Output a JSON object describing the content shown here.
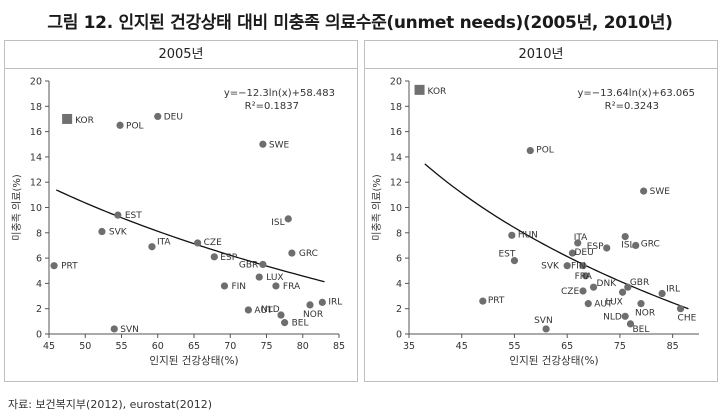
{
  "title": "그림 12. 인지된 건강상태 대비 미충족 의료수준(unmet needs)(2005년, 2010년)",
  "source": "자료: 보건복지부(2012), eurostat(2012)",
  "colors": {
    "point": "#6e6e6e",
    "kor": "#707070",
    "trend": "#111111",
    "axis": "#555555",
    "text": "#333333"
  },
  "chart_data": [
    {
      "type": "scatter",
      "title": "2005년",
      "xlabel": "인지된 건강상태(%)",
      "ylabel": "미충족 의료(%)",
      "xlim": [
        45,
        85
      ],
      "ylim": [
        0,
        20
      ],
      "xticks": [
        45,
        50,
        55,
        60,
        65,
        70,
        75,
        80,
        85
      ],
      "yticks": [
        0,
        2,
        4,
        6,
        8,
        10,
        12,
        14,
        16,
        18,
        20
      ],
      "legend": "KOR",
      "equation": "y=−12.3ln(x)+58.483",
      "r2": "R²=0.1837",
      "trend": {
        "a": -12.3,
        "b": 58.483,
        "x_from": 46,
        "x_to": 83
      },
      "points": [
        {
          "label": "KOR",
          "x": 47.5,
          "y": 17.0,
          "marker": "square",
          "dx": 8,
          "dy": 4,
          "anchor": "start"
        },
        {
          "label": "POL",
          "x": 54.8,
          "y": 16.5,
          "dx": 6,
          "dy": 3,
          "anchor": "start"
        },
        {
          "label": "DEU",
          "x": 60.0,
          "y": 17.2,
          "dx": 6,
          "dy": 3,
          "anchor": "start"
        },
        {
          "label": "SWE",
          "x": 74.5,
          "y": 15.0,
          "dx": 6,
          "dy": 3,
          "anchor": "start"
        },
        {
          "label": "EST",
          "x": 54.5,
          "y": 9.4,
          "dx": 7,
          "dy": 0,
          "anchor": "start"
        },
        {
          "label": "SVK",
          "x": 52.3,
          "y": 8.1,
          "dx": 7,
          "dy": 3,
          "anchor": "start"
        },
        {
          "label": "ITA",
          "x": 59.2,
          "y": 6.9,
          "dx": 5,
          "dy": -2,
          "anchor": "start"
        },
        {
          "label": "CZE",
          "x": 65.5,
          "y": 7.2,
          "dx": 6,
          "dy": 2,
          "anchor": "start"
        },
        {
          "label": "ESP",
          "x": 67.8,
          "y": 6.1,
          "dx": 6,
          "dy": 0,
          "anchor": "start"
        },
        {
          "label": "ISL",
          "x": 78.0,
          "y": 9.1,
          "dx": -17,
          "dy": 6,
          "anchor": "start"
        },
        {
          "label": "GRC",
          "x": 78.5,
          "y": 6.4,
          "dx": 7,
          "dy": 3,
          "anchor": "start"
        },
        {
          "label": "GBR",
          "x": 74.5,
          "y": 5.5,
          "dx": -24,
          "dy": 3,
          "anchor": "start"
        },
        {
          "label": "LUX",
          "x": 74.0,
          "y": 4.5,
          "dx": 7,
          "dy": 3,
          "anchor": "start"
        },
        {
          "label": "FRA",
          "x": 76.3,
          "y": 3.8,
          "dx": 7,
          "dy": 3,
          "anchor": "start"
        },
        {
          "label": "FIN",
          "x": 69.2,
          "y": 3.8,
          "dx": 7,
          "dy": 3,
          "anchor": "start"
        },
        {
          "label": "PRT",
          "x": 45.7,
          "y": 5.4,
          "dx": 7,
          "dy": 3,
          "anchor": "start"
        },
        {
          "label": "NLD",
          "x": 77.0,
          "y": 1.5,
          "dx": -20,
          "dy": -3,
          "anchor": "start"
        },
        {
          "label": "AUT",
          "x": 72.5,
          "y": 1.9,
          "dx": 6,
          "dy": 3,
          "anchor": "start"
        },
        {
          "label": "NOR",
          "x": 81.0,
          "y": 2.3,
          "dx": -7,
          "dy": 12,
          "anchor": "start"
        },
        {
          "label": "IRL",
          "x": 82.7,
          "y": 2.5,
          "dx": 6,
          "dy": 2,
          "anchor": "start"
        },
        {
          "label": "BEL",
          "x": 77.5,
          "y": 0.9,
          "dx": 7,
          "dy": 3,
          "anchor": "start"
        },
        {
          "label": "SVN",
          "x": 54.0,
          "y": 0.4,
          "dx": 6,
          "dy": 3,
          "anchor": "start"
        }
      ]
    },
    {
      "type": "scatter",
      "title": "2010년",
      "xlabel": "인지된 건강상태(%)",
      "ylabel": "미충족 의료(%)",
      "xlim": [
        35,
        90
      ],
      "ylim": [
        0,
        20
      ],
      "xticks": [
        35,
        45,
        55,
        65,
        75,
        85
      ],
      "yticks": [
        0,
        2,
        4,
        6,
        8,
        10,
        12,
        14,
        16,
        18,
        20
      ],
      "legend": "KOR",
      "equation": "y=−13.64ln(x)+63.065",
      "r2": "R²=0.3243",
      "trend": {
        "a": -13.64,
        "b": 63.065,
        "x_from": 38,
        "x_to": 88
      },
      "points": [
        {
          "label": "KOR",
          "x": 37.0,
          "y": 19.3,
          "marker": "square",
          "dx": 8,
          "dy": 4,
          "anchor": "start"
        },
        {
          "label": "POL",
          "x": 58.0,
          "y": 14.5,
          "dx": 6,
          "dy": 2,
          "anchor": "start"
        },
        {
          "label": "SWE",
          "x": 79.5,
          "y": 11.3,
          "dx": 6,
          "dy": 3,
          "anchor": "start"
        },
        {
          "label": "HUN",
          "x": 54.5,
          "y": 7.8,
          "dx": 6,
          "dy": 2,
          "anchor": "start"
        },
        {
          "label": "ITA",
          "x": 67.0,
          "y": 7.2,
          "dx": -4,
          "dy": -3,
          "anchor": "start"
        },
        {
          "label": "EST",
          "x": 55.0,
          "y": 5.8,
          "dx": -16,
          "dy": -4,
          "anchor": "start"
        },
        {
          "label": "DEU",
          "x": 66.0,
          "y": 6.4,
          "dx": 2,
          "dy": 2,
          "anchor": "start"
        },
        {
          "label": "ESP",
          "x": 72.5,
          "y": 6.8,
          "dx": -20,
          "dy": 1,
          "anchor": "start"
        },
        {
          "label": "ISL",
          "x": 76.0,
          "y": 7.7,
          "dx": -4,
          "dy": 11,
          "anchor": "start"
        },
        {
          "label": "GRC",
          "x": 78.0,
          "y": 7.0,
          "dx": 5,
          "dy": 1,
          "anchor": "start"
        },
        {
          "label": "SVK",
          "x": 65.0,
          "y": 5.4,
          "dx": -26,
          "dy": 3,
          "anchor": "start"
        },
        {
          "label": "FIN",
          "x": 68.0,
          "y": 5.4,
          "dx": -12,
          "dy": 3,
          "anchor": "start"
        },
        {
          "label": "FRA",
          "x": 68.5,
          "y": 4.6,
          "dx": -11,
          "dy": 3,
          "anchor": "start"
        },
        {
          "label": "DNK",
          "x": 70.0,
          "y": 3.7,
          "dx": 3,
          "dy": -1,
          "anchor": "start"
        },
        {
          "label": "CZE",
          "x": 68.0,
          "y": 3.4,
          "dx": -22,
          "dy": 3,
          "anchor": "start"
        },
        {
          "label": "GBR",
          "x": 76.5,
          "y": 3.7,
          "dx": 2,
          "dy": -2,
          "anchor": "start"
        },
        {
          "label": "LUX",
          "x": 75.5,
          "y": 3.3,
          "dx": -17,
          "dy": 12,
          "anchor": "start"
        },
        {
          "label": "AUT",
          "x": 69.0,
          "y": 2.4,
          "dx": 6,
          "dy": 3,
          "anchor": "start"
        },
        {
          "label": "IRL",
          "x": 83.0,
          "y": 3.2,
          "dx": 4,
          "dy": -2,
          "anchor": "start"
        },
        {
          "label": "NOR",
          "x": 79.0,
          "y": 2.4,
          "dx": -6,
          "dy": 12,
          "anchor": "start"
        },
        {
          "label": "NLD",
          "x": 76.0,
          "y": 1.4,
          "dx": -22,
          "dy": 3,
          "anchor": "start"
        },
        {
          "label": "BEL",
          "x": 77.0,
          "y": 0.8,
          "dx": 2,
          "dy": 8,
          "anchor": "start"
        },
        {
          "label": "CHE",
          "x": 86.5,
          "y": 2.0,
          "dx": -3,
          "dy": 12,
          "anchor": "start"
        },
        {
          "label": "PRT",
          "x": 49.0,
          "y": 2.6,
          "dx": 5,
          "dy": 2,
          "anchor": "start"
        },
        {
          "label": "SVN",
          "x": 61.0,
          "y": 0.4,
          "dx": -12,
          "dy": -6,
          "anchor": "start"
        }
      ]
    }
  ]
}
